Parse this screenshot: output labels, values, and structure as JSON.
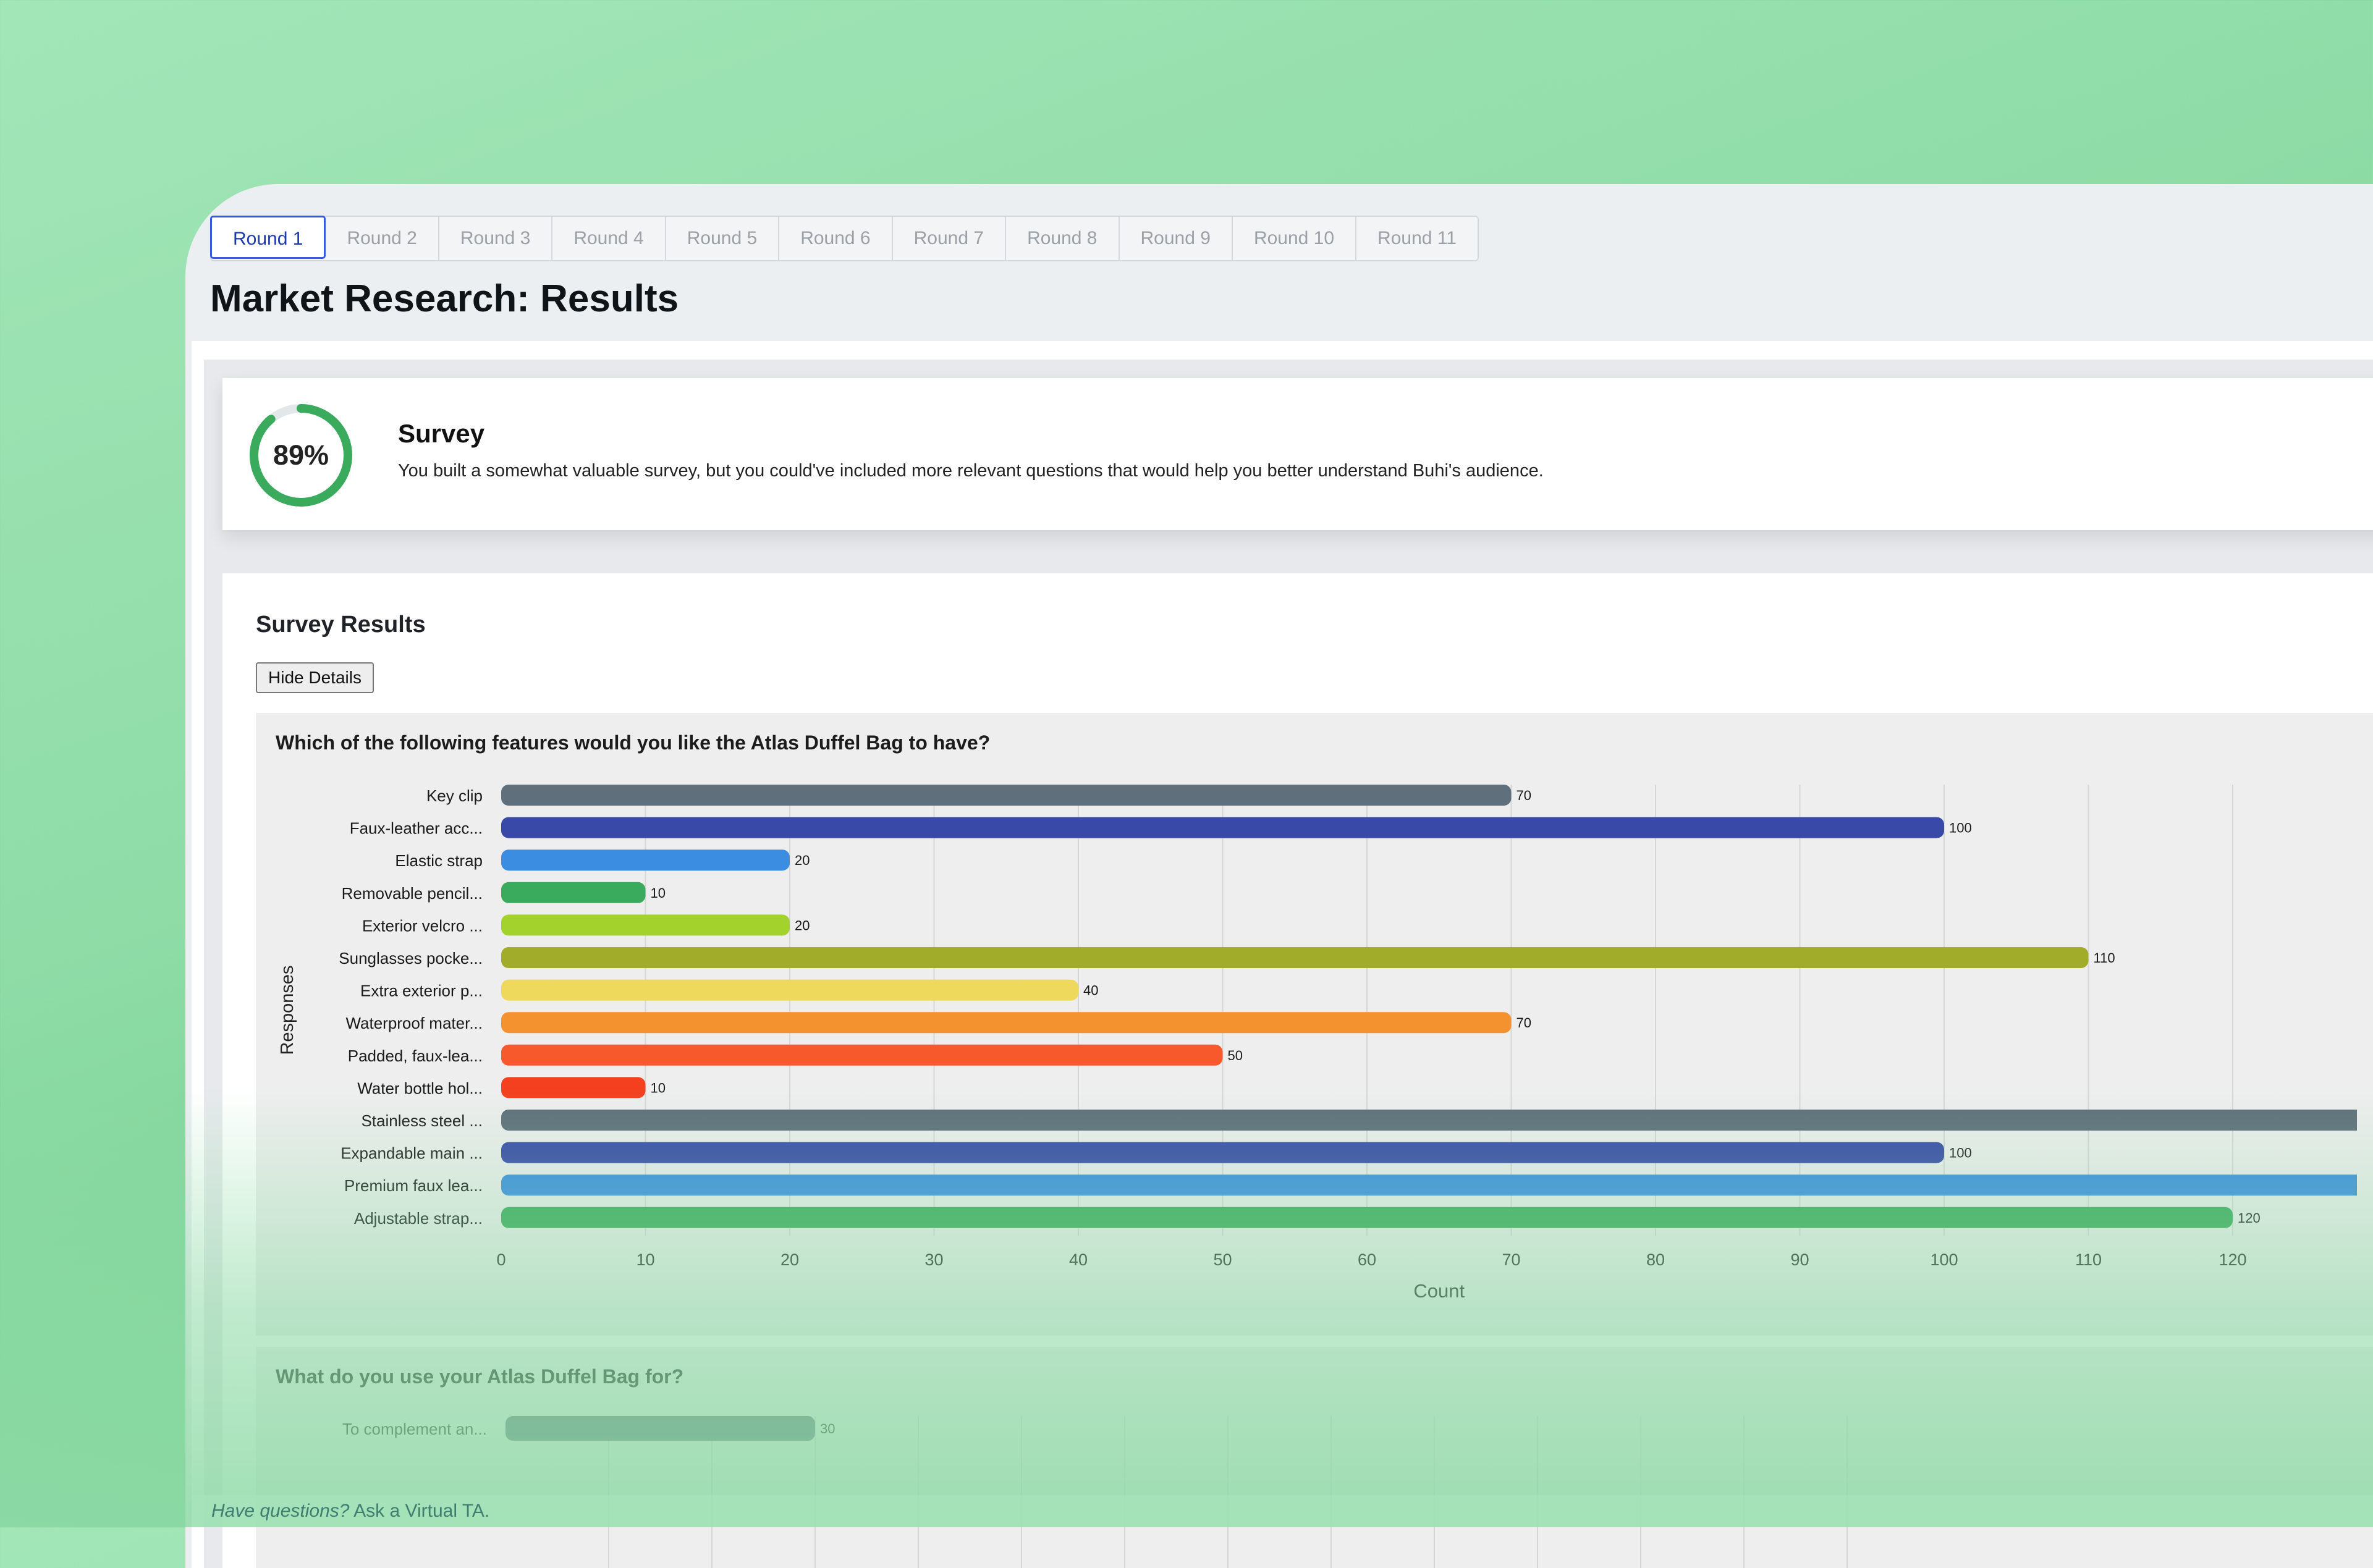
{
  "tabs": [
    "Round 1",
    "Round 2",
    "Round 3",
    "Round 4",
    "Round 5",
    "Round 6",
    "Round 7",
    "Round 8",
    "Round 9",
    "Round 10",
    "Round 11"
  ],
  "page_title": "Market Research: Results",
  "survey": {
    "score": "89%",
    "score_value": 89,
    "title": "Survey",
    "description": "You built a somewhat valuable survey, but you could've included more relevant questions that would help you better understand Buhi's audience."
  },
  "results": {
    "title": "Survey Results",
    "toggle_label": "Hide Details"
  },
  "questions": [
    {
      "title": "Which of the following features would you like the Atlas Duffel Bag to have?"
    },
    {
      "title": "What do you use your Atlas Duffel Bag for?"
    }
  ],
  "footer": {
    "question": "Have questions?",
    "link": "Ask a Virtual TA."
  },
  "colors": {
    "accent": "#3a5bd9",
    "score_ring": "#3aaa5c"
  },
  "chart_data": [
    {
      "type": "bar",
      "orientation": "horizontal",
      "title": "Which of the following features would you like the Atlas Duffel Bag to have?",
      "xlabel": "Count",
      "ylabel": "Responses",
      "xlim": [
        0,
        130
      ],
      "xticks": [
        0,
        10,
        20,
        30,
        40,
        50,
        60,
        70,
        80,
        90,
        100,
        110,
        120
      ],
      "xtick_labels": [
        "0",
        "10",
        "20",
        "30",
        "40",
        "50",
        "60",
        "70",
        "80",
        "90",
        "100",
        "110",
        "120"
      ],
      "grid": true,
      "categories": [
        "Key clip",
        "Faux-leather acc...",
        "Elastic strap",
        "Removable pencil...",
        "Exterior velcro ...",
        "Sunglasses pocke...",
        "Extra exterior p...",
        "Waterproof mater...",
        "Padded, faux-lea...",
        "Water bottle hol...",
        "Stainless steel ...",
        "Expandable main ...",
        "Premium faux lea...",
        "Adjustable strap..."
      ],
      "values": [
        70,
        100,
        20,
        10,
        20,
        110,
        40,
        70,
        50,
        10,
        130,
        100,
        130,
        120
      ],
      "data_labels": [
        "70",
        "100",
        "20",
        "10",
        "20",
        "110",
        "40",
        "70",
        "50",
        "10",
        "",
        "100",
        "",
        "120"
      ],
      "colors": [
        "#5f6f7b",
        "#3949a8",
        "#3a8de0",
        "#3aaa5c",
        "#a4d22c",
        "#a1ac2a",
        "#efd95c",
        "#f59230",
        "#f7582c",
        "#f4401f",
        "#5f6f7b",
        "#3949a8",
        "#3a8de0",
        "#3aaa5c"
      ]
    },
    {
      "type": "bar",
      "orientation": "horizontal",
      "title": "What do you use your Atlas Duffel Bag for?",
      "xlim": [
        0,
        130
      ],
      "grid": true,
      "categories": [
        "To complement an..."
      ],
      "values": [
        30
      ],
      "data_labels": [
        "30"
      ],
      "colors": [
        "#5f6f7b"
      ]
    }
  ]
}
